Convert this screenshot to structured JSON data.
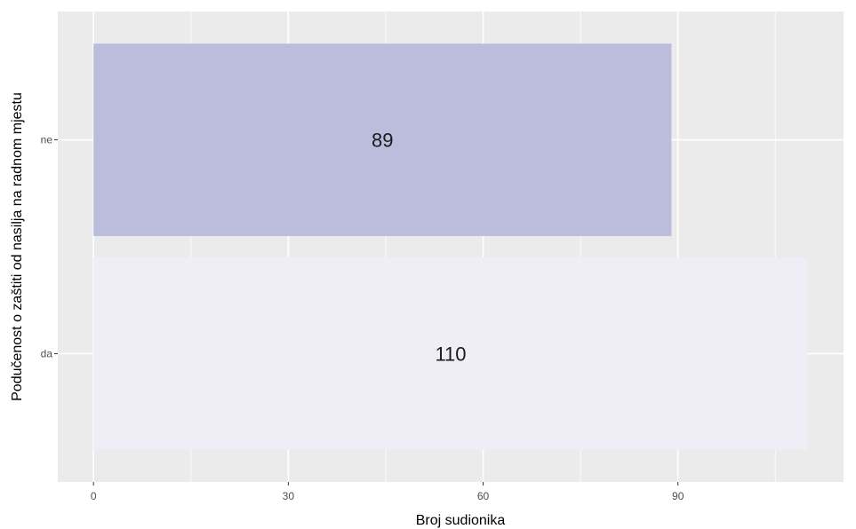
{
  "chart_data": {
    "type": "bar",
    "orientation": "horizontal",
    "categories": [
      "ne",
      "da"
    ],
    "values": [
      89,
      110
    ],
    "data_labels": [
      "89",
      "110"
    ],
    "colors": [
      "#bcbddc",
      "#efedf5"
    ],
    "title": "",
    "xlabel": "Broj sudionika",
    "ylabel": "Podučenost o zaštiti od nasilja na radnom mjestu",
    "xlim": [
      -5.5,
      115.5
    ],
    "xticks": [
      0,
      30,
      60,
      90
    ],
    "xtick_labels": [
      "0",
      "30",
      "60",
      "90"
    ],
    "minor_xticks": [
      15,
      45,
      75,
      105
    ],
    "grid": true,
    "legend": "none",
    "panel_background": "#ebebeb",
    "grid_color": "#ffffff"
  }
}
